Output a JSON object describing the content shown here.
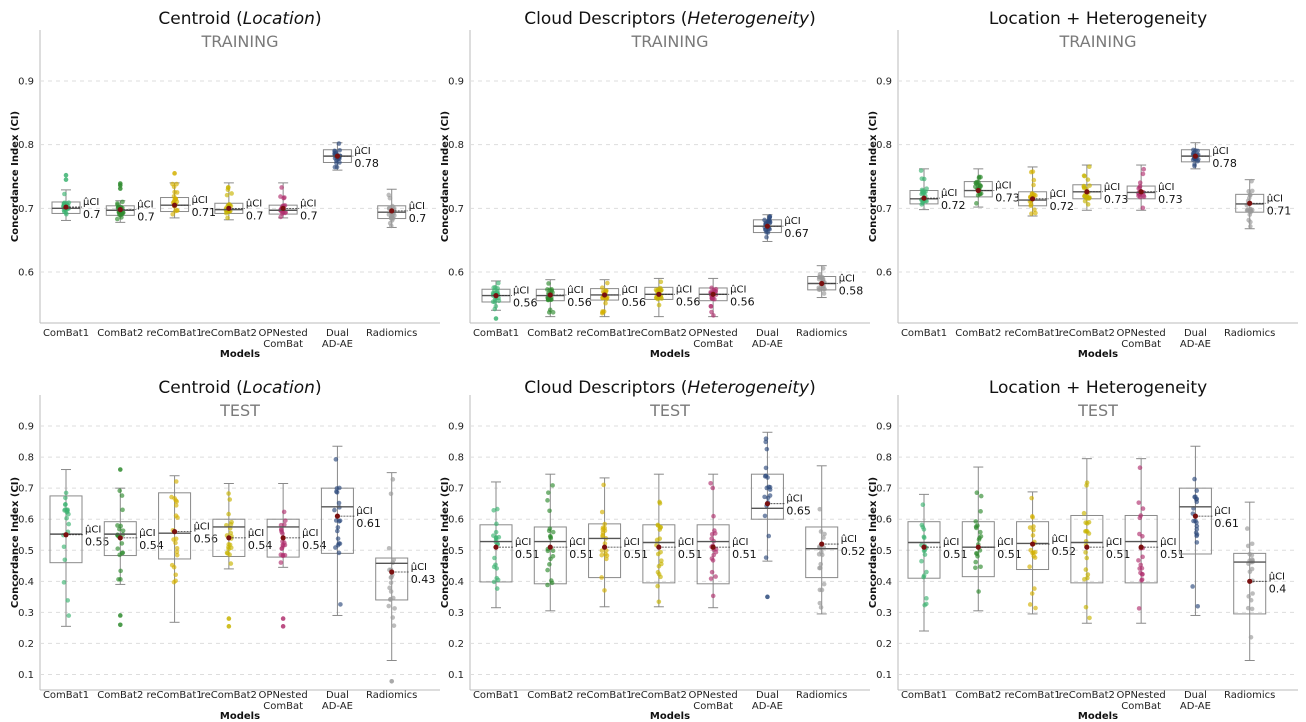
{
  "chart_data": [
    {
      "type": "box",
      "title_main": "Centroid (",
      "title_italic": "Location",
      "title_close": ")",
      "subtitle": "TRAINING",
      "xlabel": "Models",
      "ylabel": "Concordance Index (CI)",
      "ylim": [
        0.52,
        0.98
      ],
      "yticks": [
        0.6,
        0.7,
        0.8,
        0.9
      ],
      "grid": true,
      "mu_label": "μ̂CI",
      "categories": [
        "ComBat1",
        "ComBat2",
        "reComBat1",
        "reComBat2",
        "OPNested ComBat",
        "Dual AD-AE",
        "Radiomics"
      ],
      "colors": [
        "#3cb371",
        "#2e8b2e",
        "#d4b000",
        "#c8b400",
        "#b0306e",
        "#2c4a7c",
        "#9a9a9a"
      ],
      "boxes": [
        {
          "min": 0.681,
          "q1": 0.692,
          "median": 0.7,
          "q3": 0.71,
          "max": 0.729,
          "mean": 0.702,
          "mean_label": "0.7",
          "outliers": [
            0.752,
            0.745
          ]
        },
        {
          "min": 0.678,
          "q1": 0.689,
          "median": 0.697,
          "q3": 0.704,
          "max": 0.712,
          "mean": 0.698,
          "mean_label": "0.7",
          "outliers": [
            0.736,
            0.739,
            0.731
          ]
        },
        {
          "min": 0.685,
          "q1": 0.695,
          "median": 0.705,
          "q3": 0.717,
          "max": 0.74,
          "mean": 0.705,
          "mean_label": "0.71",
          "outliers": [
            0.755
          ]
        },
        {
          "min": 0.682,
          "q1": 0.692,
          "median": 0.698,
          "q3": 0.708,
          "max": 0.74,
          "mean": 0.7,
          "mean_label": "0.7",
          "outliers": []
        },
        {
          "min": 0.685,
          "q1": 0.691,
          "median": 0.697,
          "q3": 0.705,
          "max": 0.74,
          "mean": 0.7,
          "mean_label": "0.7",
          "outliers": []
        },
        {
          "min": 0.76,
          "q1": 0.772,
          "median": 0.782,
          "q3": 0.792,
          "max": 0.803,
          "mean": 0.782,
          "mean_label": "0.78",
          "outliers": []
        },
        {
          "min": 0.67,
          "q1": 0.684,
          "median": 0.694,
          "q3": 0.704,
          "max": 0.73,
          "mean": 0.696,
          "mean_label": "0.7",
          "outliers": []
        }
      ]
    },
    {
      "type": "box",
      "title_main": "Cloud Descriptors (",
      "title_italic": "Heterogeneity",
      "title_close": ")",
      "subtitle": "TRAINING",
      "xlabel": "Models",
      "ylabel": "Concordance Index (CI)",
      "ylim": [
        0.52,
        0.98
      ],
      "yticks": [
        0.6,
        0.7,
        0.8,
        0.9
      ],
      "grid": true,
      "mu_label": "μ̂CI",
      "categories": [
        "ComBat1",
        "ComBat2",
        "reComBat1",
        "reComBat2",
        "OPNested ComBat",
        "Dual AD-AE",
        "Radiomics"
      ],
      "colors": [
        "#3cb371",
        "#2e8b2e",
        "#d4b000",
        "#c8b400",
        "#b0306e",
        "#2c4a7c",
        "#9a9a9a"
      ],
      "boxes": [
        {
          "min": 0.54,
          "q1": 0.553,
          "median": 0.563,
          "q3": 0.573,
          "max": 0.586,
          "mean": 0.563,
          "mean_label": "0.56",
          "outliers": [
            0.527
          ]
        },
        {
          "min": 0.53,
          "q1": 0.555,
          "median": 0.563,
          "q3": 0.573,
          "max": 0.588,
          "mean": 0.564,
          "mean_label": "0.56",
          "outliers": []
        },
        {
          "min": 0.53,
          "q1": 0.556,
          "median": 0.564,
          "q3": 0.574,
          "max": 0.588,
          "mean": 0.564,
          "mean_label": "0.56",
          "outliers": []
        },
        {
          "min": 0.53,
          "q1": 0.557,
          "median": 0.565,
          "q3": 0.576,
          "max": 0.59,
          "mean": 0.565,
          "mean_label": "0.56",
          "outliers": []
        },
        {
          "min": 0.53,
          "q1": 0.555,
          "median": 0.565,
          "q3": 0.575,
          "max": 0.59,
          "mean": 0.565,
          "mean_label": "0.56",
          "outliers": []
        },
        {
          "min": 0.648,
          "q1": 0.662,
          "median": 0.672,
          "q3": 0.682,
          "max": 0.69,
          "mean": 0.672,
          "mean_label": "0.67",
          "outliers": []
        },
        {
          "min": 0.56,
          "q1": 0.572,
          "median": 0.582,
          "q3": 0.593,
          "max": 0.61,
          "mean": 0.582,
          "mean_label": "0.58",
          "outliers": []
        }
      ]
    },
    {
      "type": "box",
      "title_main": "Location + Heterogeneity",
      "title_italic": "",
      "title_close": "",
      "subtitle": "TRAINING",
      "xlabel": "Models",
      "ylabel": "Concordance Index (CI)",
      "ylim": [
        0.52,
        0.98
      ],
      "yticks": [
        0.6,
        0.7,
        0.8,
        0.9
      ],
      "grid": true,
      "mu_label": "μ̂CI",
      "categories": [
        "ComBat1",
        "ComBat2",
        "reComBat1",
        "reComBat2",
        "OPNested ComBat",
        "Dual AD-AE",
        "Radiomics"
      ],
      "colors": [
        "#3cb371",
        "#2e8b2e",
        "#d4b000",
        "#c8b400",
        "#b0306e",
        "#2c4a7c",
        "#9a9a9a"
      ],
      "boxes": [
        {
          "min": 0.698,
          "q1": 0.707,
          "median": 0.715,
          "q3": 0.728,
          "max": 0.762,
          "mean": 0.716,
          "mean_label": "0.72",
          "outliers": []
        },
        {
          "min": 0.702,
          "q1": 0.718,
          "median": 0.728,
          "q3": 0.742,
          "max": 0.762,
          "mean": 0.728,
          "mean_label": "0.73",
          "outliers": []
        },
        {
          "min": 0.688,
          "q1": 0.704,
          "median": 0.713,
          "q3": 0.726,
          "max": 0.765,
          "mean": 0.715,
          "mean_label": "0.72",
          "outliers": []
        },
        {
          "min": 0.697,
          "q1": 0.715,
          "median": 0.726,
          "q3": 0.737,
          "max": 0.768,
          "mean": 0.726,
          "mean_label": "0.73",
          "outliers": []
        },
        {
          "min": 0.697,
          "q1": 0.715,
          "median": 0.725,
          "q3": 0.735,
          "max": 0.768,
          "mean": 0.726,
          "mean_label": "0.73",
          "outliers": []
        },
        {
          "min": 0.762,
          "q1": 0.773,
          "median": 0.782,
          "q3": 0.792,
          "max": 0.803,
          "mean": 0.782,
          "mean_label": "0.78",
          "outliers": []
        },
        {
          "min": 0.668,
          "q1": 0.694,
          "median": 0.707,
          "q3": 0.722,
          "max": 0.745,
          "mean": 0.708,
          "mean_label": "0.71",
          "outliers": []
        }
      ]
    },
    {
      "type": "box",
      "title_main": "Centroid (",
      "title_italic": "Location",
      "title_close": ")",
      "subtitle": "TEST",
      "xlabel": "Models",
      "ylabel": "Concordance Index (CI)",
      "ylim": [
        0.05,
        1.0
      ],
      "yticks": [
        0.1,
        0.2,
        0.3,
        0.4,
        0.5,
        0.6,
        0.7,
        0.8,
        0.9
      ],
      "grid": true,
      "mu_label": "μ̂CI",
      "categories": [
        "ComBat1",
        "ComBat2",
        "reComBat1",
        "reComBat2",
        "OPNested ComBat",
        "Dual AD-AE",
        "Radiomics"
      ],
      "colors": [
        "#3cb371",
        "#2e8b2e",
        "#d4b000",
        "#c8b400",
        "#b0306e",
        "#2c4a7c",
        "#9a9a9a"
      ],
      "boxes": [
        {
          "min": 0.255,
          "q1": 0.46,
          "median": 0.552,
          "q3": 0.675,
          "max": 0.76,
          "mean": 0.55,
          "mean_label": "0.55",
          "outliers": []
        },
        {
          "min": 0.39,
          "q1": 0.483,
          "median": 0.552,
          "q3": 0.592,
          "max": 0.7,
          "mean": 0.54,
          "mean_label": "0.54",
          "outliers": [
            0.76,
            0.29,
            0.26
          ]
        },
        {
          "min": 0.268,
          "q1": 0.472,
          "median": 0.555,
          "q3": 0.685,
          "max": 0.74,
          "mean": 0.56,
          "mean_label": "0.56",
          "outliers": []
        },
        {
          "min": 0.44,
          "q1": 0.48,
          "median": 0.575,
          "q3": 0.6,
          "max": 0.715,
          "mean": 0.54,
          "mean_label": "0.54",
          "outliers": [
            0.28,
            0.255
          ]
        },
        {
          "min": 0.445,
          "q1": 0.478,
          "median": 0.575,
          "q3": 0.6,
          "max": 0.715,
          "mean": 0.54,
          "mean_label": "0.54",
          "outliers": [
            0.28,
            0.255
          ]
        },
        {
          "min": 0.29,
          "q1": 0.49,
          "median": 0.64,
          "q3": 0.7,
          "max": 0.835,
          "mean": 0.61,
          "mean_label": "0.61",
          "outliers": []
        },
        {
          "min": 0.145,
          "q1": 0.34,
          "median": 0.458,
          "q3": 0.475,
          "max": 0.75,
          "mean": 0.43,
          "mean_label": "0.43",
          "outliers": [
            0.078
          ]
        }
      ]
    },
    {
      "type": "box",
      "title_main": "Cloud Descriptors (",
      "title_italic": "Heterogeneity",
      "title_close": ")",
      "subtitle": "TEST",
      "xlabel": "Models",
      "ylabel": "Concordance Index (CI)",
      "ylim": [
        0.05,
        1.0
      ],
      "yticks": [
        0.1,
        0.2,
        0.3,
        0.4,
        0.5,
        0.6,
        0.7,
        0.8,
        0.9
      ],
      "grid": true,
      "mu_label": "μ̂CI",
      "categories": [
        "ComBat1",
        "ComBat2",
        "reComBat1",
        "reComBat2",
        "OPNested ComBat",
        "Dual AD-AE",
        "Radiomics"
      ],
      "colors": [
        "#3cb371",
        "#2e8b2e",
        "#d4b000",
        "#c8b400",
        "#b0306e",
        "#2c4a7c",
        "#9a9a9a"
      ],
      "boxes": [
        {
          "min": 0.315,
          "q1": 0.398,
          "median": 0.528,
          "q3": 0.582,
          "max": 0.72,
          "mean": 0.51,
          "mean_label": "0.51",
          "outliers": []
        },
        {
          "min": 0.305,
          "q1": 0.392,
          "median": 0.528,
          "q3": 0.575,
          "max": 0.745,
          "mean": 0.51,
          "mean_label": "0.51",
          "outliers": []
        },
        {
          "min": 0.318,
          "q1": 0.412,
          "median": 0.538,
          "q3": 0.585,
          "max": 0.733,
          "mean": 0.51,
          "mean_label": "0.51",
          "outliers": []
        },
        {
          "min": 0.318,
          "q1": 0.395,
          "median": 0.525,
          "q3": 0.582,
          "max": 0.745,
          "mean": 0.51,
          "mean_label": "0.51",
          "outliers": []
        },
        {
          "min": 0.315,
          "q1": 0.392,
          "median": 0.528,
          "q3": 0.582,
          "max": 0.745,
          "mean": 0.51,
          "mean_label": "0.51",
          "outliers": []
        },
        {
          "min": 0.465,
          "q1": 0.6,
          "median": 0.635,
          "q3": 0.745,
          "max": 0.88,
          "mean": 0.65,
          "mean_label": "0.65",
          "outliers": [
            0.35
          ]
        },
        {
          "min": 0.295,
          "q1": 0.412,
          "median": 0.505,
          "q3": 0.575,
          "max": 0.772,
          "mean": 0.52,
          "mean_label": "0.52",
          "outliers": []
        }
      ]
    },
    {
      "type": "box",
      "title_main": "Location + Heterogeneity",
      "title_italic": "",
      "title_close": "",
      "subtitle": "TEST",
      "xlabel": "Models",
      "ylabel": "Concordance Index (CI)",
      "ylim": [
        0.05,
        1.0
      ],
      "yticks": [
        0.1,
        0.2,
        0.3,
        0.4,
        0.5,
        0.6,
        0.7,
        0.8,
        0.9
      ],
      "grid": true,
      "mu_label": "μ̂CI",
      "categories": [
        "ComBat1",
        "ComBat2",
        "reComBat1",
        "reComBat2",
        "OPNested ComBat",
        "Dual AD-AE",
        "Radiomics"
      ],
      "colors": [
        "#3cb371",
        "#2e8b2e",
        "#d4b000",
        "#c8b400",
        "#b0306e",
        "#2c4a7c",
        "#9a9a9a"
      ],
      "boxes": [
        {
          "min": 0.24,
          "q1": 0.41,
          "median": 0.525,
          "q3": 0.592,
          "max": 0.68,
          "mean": 0.51,
          "mean_label": "0.51",
          "outliers": []
        },
        {
          "min": 0.305,
          "q1": 0.415,
          "median": 0.51,
          "q3": 0.592,
          "max": 0.768,
          "mean": 0.51,
          "mean_label": "0.51",
          "outliers": []
        },
        {
          "min": 0.295,
          "q1": 0.438,
          "median": 0.522,
          "q3": 0.592,
          "max": 0.688,
          "mean": 0.52,
          "mean_label": "0.52",
          "outliers": []
        },
        {
          "min": 0.265,
          "q1": 0.395,
          "median": 0.525,
          "q3": 0.612,
          "max": 0.795,
          "mean": 0.51,
          "mean_label": "0.51",
          "outliers": []
        },
        {
          "min": 0.265,
          "q1": 0.395,
          "median": 0.528,
          "q3": 0.612,
          "max": 0.795,
          "mean": 0.51,
          "mean_label": "0.51",
          "outliers": []
        },
        {
          "min": 0.29,
          "q1": 0.488,
          "median": 0.64,
          "q3": 0.7,
          "max": 0.835,
          "mean": 0.61,
          "mean_label": "0.61",
          "outliers": []
        },
        {
          "min": 0.145,
          "q1": 0.295,
          "median": 0.462,
          "q3": 0.49,
          "max": 0.655,
          "mean": 0.4,
          "mean_label": "0.4",
          "outliers": []
        }
      ]
    }
  ]
}
